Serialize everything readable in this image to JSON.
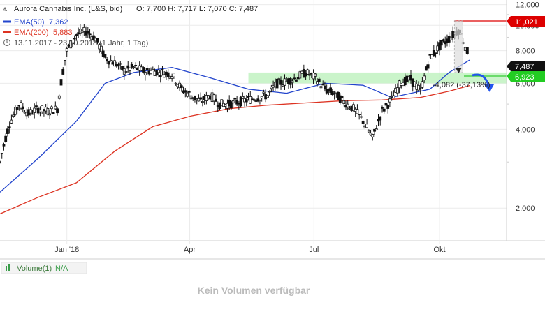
{
  "header": {
    "instrument": "Aurora Cannabis Inc. (L&S, bid)",
    "ohlc": "O: 7,700  H: 7,717  L: 7,070  C: 7,487",
    "ema50_label": "EMA(50)",
    "ema50_value": "7,362",
    "ema200_label": "EMA(200)",
    "ema200_value": "5,883",
    "range": "13.11.2017 - 23.10.2018  (1 Jahr, 1 Tag)"
  },
  "colors": {
    "ema50": "#2244cc",
    "ema200": "#dd3322",
    "candle": "#111111",
    "zone": "#b8f0b8",
    "resistance": "#dd0000",
    "support": "#33cc33",
    "arrow": "#2255ee"
  },
  "price_tags": {
    "high": "11,021",
    "current": "7,487",
    "support": "6,923"
  },
  "annotation": "-4,082 (-37,13%)",
  "volume": {
    "label": "Volume(1)",
    "value": "N/A",
    "empty_message": "Kein Volumen verfügbar"
  },
  "chart_data": {
    "type": "line",
    "scale": "log",
    "ylim": [
      1500,
      12500
    ],
    "y_ticks": [
      2000,
      4000,
      6000,
      8000,
      10000,
      12000
    ],
    "y_tick_labels": [
      "2,000",
      "4,000",
      "6,000",
      "8,000",
      "10,000",
      "12,000"
    ],
    "x_range": [
      "2017-11-13",
      "2018-10-23"
    ],
    "x_ticks": [
      "Jan '18",
      "Apr",
      "Jul",
      "Okt"
    ],
    "x_tick_dates": [
      "2018-01-01",
      "2018-04-01",
      "2018-07-01",
      "2018-10-01"
    ],
    "grid": true,
    "zone": [
      6000,
      6600
    ],
    "series": [
      {
        "name": "Aurora Cannabis Inc. (L&S, bid)",
        "style": "candles",
        "x": [
          "2017-11-13",
          "2017-11-20",
          "2017-11-27",
          "2017-12-04",
          "2017-12-11",
          "2017-12-18",
          "2017-12-25",
          "2018-01-01",
          "2018-01-08",
          "2018-01-15",
          "2018-01-22",
          "2018-01-29",
          "2018-02-05",
          "2018-02-12",
          "2018-02-19",
          "2018-02-26",
          "2018-03-05",
          "2018-03-12",
          "2018-03-19",
          "2018-03-26",
          "2018-04-02",
          "2018-04-09",
          "2018-04-16",
          "2018-04-23",
          "2018-04-30",
          "2018-05-07",
          "2018-05-14",
          "2018-05-21",
          "2018-05-28",
          "2018-06-04",
          "2018-06-11",
          "2018-06-18",
          "2018-06-25",
          "2018-07-02",
          "2018-07-09",
          "2018-07-16",
          "2018-07-23",
          "2018-07-30",
          "2018-08-06",
          "2018-08-13",
          "2018-08-20",
          "2018-08-27",
          "2018-09-03",
          "2018-09-10",
          "2018-09-17",
          "2018-09-24",
          "2018-10-01",
          "2018-10-08",
          "2018-10-15",
          "2018-10-23"
        ],
        "y": [
          3000,
          4200,
          5000,
          4600,
          4800,
          4700,
          4800,
          8000,
          9200,
          9500,
          8900,
          7500,
          7200,
          6700,
          6900,
          6700,
          6700,
          6600,
          6500,
          5700,
          5400,
          5100,
          5400,
          5000,
          5000,
          5100,
          5200,
          5300,
          5400,
          6000,
          6100,
          6300,
          6600,
          6300,
          5700,
          5500,
          5100,
          4800,
          4300,
          3700,
          4700,
          5200,
          6100,
          6200,
          5600,
          7500,
          8300,
          8900,
          9600,
          7487
        ]
      },
      {
        "name": "EMA(50)",
        "style": "line",
        "x": [
          "2017-11-13",
          "2017-12-11",
          "2018-01-08",
          "2018-01-29",
          "2018-02-19",
          "2018-03-19",
          "2018-04-16",
          "2018-05-14",
          "2018-06-11",
          "2018-07-09",
          "2018-08-06",
          "2018-08-27",
          "2018-09-24",
          "2018-10-08",
          "2018-10-23"
        ],
        "y": [
          2300,
          3100,
          4300,
          6000,
          6600,
          6900,
          6300,
          5700,
          5500,
          6000,
          5900,
          5300,
          5700,
          6600,
          7362
        ]
      },
      {
        "name": "EMA(200)",
        "style": "line",
        "x": [
          "2017-11-13",
          "2017-12-11",
          "2018-01-08",
          "2018-02-05",
          "2018-03-05",
          "2018-04-02",
          "2018-04-30",
          "2018-05-28",
          "2018-06-25",
          "2018-07-23",
          "2018-08-20",
          "2018-09-17",
          "2018-10-08",
          "2018-10-23"
        ],
        "y": [
          1900,
          2200,
          2500,
          3300,
          4100,
          4500,
          4800,
          4950,
          5050,
          5150,
          5180,
          5300,
          5600,
          5883
        ]
      }
    ]
  }
}
